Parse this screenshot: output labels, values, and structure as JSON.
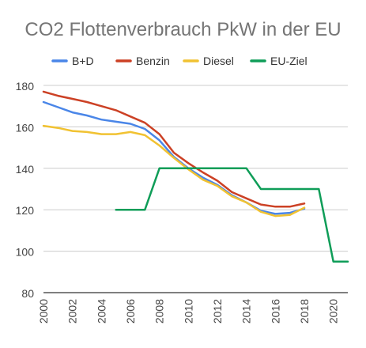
{
  "chart_data": {
    "type": "line",
    "title": "CO2 Flottenverbrauch PkW in der EU",
    "legend_position": "top",
    "grid": true,
    "ylim": [
      80,
      180
    ],
    "xlim": [
      2000,
      2021
    ],
    "yticks": [
      80,
      100,
      120,
      140,
      160,
      180
    ],
    "xticks": [
      2000,
      2002,
      2004,
      2006,
      2008,
      2010,
      2012,
      2014,
      2016,
      2018,
      2020
    ],
    "series": [
      {
        "name": "B+D",
        "color": "#4a86e8",
        "points": [
          [
            2000,
            172
          ],
          [
            2001,
            169.5
          ],
          [
            2002,
            167
          ],
          [
            2003,
            165.5
          ],
          [
            2004,
            163.5
          ],
          [
            2005,
            162.5
          ],
          [
            2006,
            161.5
          ],
          [
            2007,
            159
          ],
          [
            2008,
            153.5
          ],
          [
            2009,
            145.5
          ],
          [
            2010,
            140
          ],
          [
            2011,
            135.5
          ],
          [
            2012,
            132
          ],
          [
            2013,
            127
          ],
          [
            2014,
            123.5
          ],
          [
            2015,
            119.5
          ],
          [
            2016,
            118
          ],
          [
            2017,
            118.5
          ],
          [
            2018,
            120.5
          ]
        ]
      },
      {
        "name": "Benzin",
        "color": "#cc4125",
        "points": [
          [
            2000,
            177
          ],
          [
            2001,
            175
          ],
          [
            2002,
            173.5
          ],
          [
            2003,
            172
          ],
          [
            2004,
            170
          ],
          [
            2005,
            168
          ],
          [
            2006,
            165
          ],
          [
            2007,
            162
          ],
          [
            2008,
            156.5
          ],
          [
            2009,
            147.5
          ],
          [
            2010,
            142.5
          ],
          [
            2011,
            138
          ],
          [
            2012,
            134
          ],
          [
            2013,
            128.5
          ],
          [
            2014,
            125.5
          ],
          [
            2015,
            122.5
          ],
          [
            2016,
            121.5
          ],
          [
            2017,
            121.5
          ],
          [
            2018,
            123
          ]
        ]
      },
      {
        "name": "Diesel",
        "color": "#f1c232",
        "points": [
          [
            2000,
            160.5
          ],
          [
            2001,
            159.5
          ],
          [
            2002,
            158
          ],
          [
            2003,
            157.5
          ],
          [
            2004,
            156.5
          ],
          [
            2005,
            156.5
          ],
          [
            2006,
            157.5
          ],
          [
            2007,
            156
          ],
          [
            2008,
            151
          ],
          [
            2009,
            145
          ],
          [
            2010,
            139.5
          ],
          [
            2011,
            134.5
          ],
          [
            2012,
            131.5
          ],
          [
            2013,
            126.5
          ],
          [
            2014,
            123.5
          ],
          [
            2015,
            119
          ],
          [
            2016,
            117
          ],
          [
            2017,
            117.5
          ],
          [
            2018,
            121
          ]
        ]
      },
      {
        "name": "EU-Ziel",
        "color": "#0f9d58",
        "points": [
          [
            2005,
            120
          ],
          [
            2007,
            120
          ],
          [
            2008,
            140
          ],
          [
            2014,
            140
          ],
          [
            2015,
            130
          ],
          [
            2019,
            130
          ],
          [
            2020,
            95
          ],
          [
            2021,
            95
          ]
        ]
      }
    ]
  }
}
